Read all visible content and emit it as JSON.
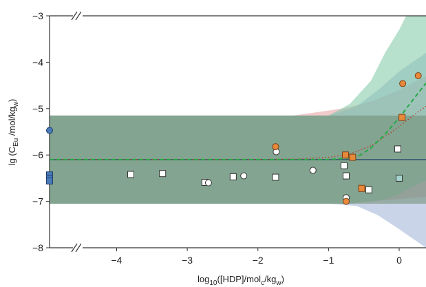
{
  "chart_data": {
    "type": "scatter",
    "xlabel_parts": {
      "a": "log",
      "a_sub": "10",
      "b": "([HDP]/mol",
      "b_sub": "c",
      "c": "/kg",
      "c_sub": "w",
      "d": ")"
    },
    "ylabel_parts": {
      "a": "lg (C",
      "a_sub": "Eu",
      "b": " /mol/kg",
      "b_sub": "w",
      "c": ")"
    },
    "xlim": [
      -4.95,
      0.38
    ],
    "ylim": [
      -8,
      -3
    ],
    "x_ticks": [
      -4,
      -3,
      -2,
      -1,
      0
    ],
    "x_tick_labels": [
      "−4",
      "−3",
      "−2",
      "−1",
      "0"
    ],
    "y_ticks": [
      -3,
      -4,
      -5,
      -6,
      -7,
      -8
    ],
    "y_tick_labels": [
      "−3",
      "−4",
      "−5",
      "−6",
      "−7",
      "−8"
    ],
    "axis_break": "//",
    "colors": {
      "orange": "#e8883a",
      "blue": "#4a7ab8",
      "green_dashed": "#27a844",
      "red_dotted": "#b04a3a",
      "solid_line": "#3f5f72",
      "band_green": "#7ec8a4",
      "band_red": "#e8a7a7",
      "band_blue": "#9fb1d6",
      "band_gray": "#6d8a6f"
    },
    "bands": {
      "constant_lower": -7.05,
      "constant_upper": -5.15,
      "green_model": [
        [
          -4.95,
          -7.05,
          -5.15
        ],
        [
          -1.5,
          -7.05,
          -5.15
        ],
        [
          -1.0,
          -7.05,
          -5.15
        ],
        [
          -0.7,
          -7.05,
          -4.9
        ],
        [
          -0.4,
          -7.0,
          -4.4
        ],
        [
          -0.2,
          -6.95,
          -3.8
        ],
        [
          0.0,
          -6.85,
          -3.3
        ],
        [
          0.1,
          -6.75,
          -3.0
        ],
        [
          0.38,
          -6.55,
          -3.0
        ]
      ],
      "red_model": [
        [
          -4.95,
          -7.05,
          -5.15
        ],
        [
          -1.5,
          -7.05,
          -5.15
        ],
        [
          -0.8,
          -7.05,
          -5.0
        ],
        [
          -0.4,
          -7.0,
          -4.85
        ],
        [
          0.0,
          -6.95,
          -4.6
        ],
        [
          0.38,
          -6.9,
          -4.3
        ]
      ],
      "blue_model": [
        [
          -4.95,
          -7.05,
          -5.15
        ],
        [
          -1.5,
          -7.05,
          -5.15
        ],
        [
          -1.0,
          -7.05,
          -5.15
        ],
        [
          -0.6,
          -7.1,
          -4.95
        ],
        [
          -0.3,
          -7.3,
          -4.6
        ],
        [
          0.0,
          -7.6,
          -4.2
        ],
        [
          0.38,
          -8.0,
          -3.8
        ]
      ]
    },
    "lines": {
      "solid": [
        [
          -4.95,
          -6.1
        ],
        [
          0.38,
          -6.1
        ]
      ],
      "green_dashed": [
        [
          -4.95,
          -6.1
        ],
        [
          -1.5,
          -6.1
        ],
        [
          -1.0,
          -6.1
        ],
        [
          -0.6,
          -6.05
        ],
        [
          -0.4,
          -5.85
        ],
        [
          -0.2,
          -5.55
        ],
        [
          0.0,
          -5.2
        ],
        [
          0.2,
          -4.8
        ],
        [
          0.38,
          -4.45
        ]
      ],
      "red_dotted": [
        [
          -4.95,
          -6.1
        ],
        [
          -2.0,
          -6.1
        ],
        [
          -1.5,
          -6.09
        ],
        [
          -1.0,
          -6.05
        ],
        [
          -0.7,
          -5.98
        ],
        [
          -0.4,
          -5.8
        ],
        [
          -0.1,
          -5.5
        ],
        [
          0.2,
          -5.15
        ],
        [
          0.38,
          -4.95
        ]
      ]
    },
    "series": [
      {
        "marker": "square",
        "fill": "none",
        "values": [
          [
            -3.8,
            -6.42
          ],
          [
            -3.35,
            -6.4
          ],
          [
            -2.75,
            -6.59
          ],
          [
            -2.35,
            -6.47
          ],
          [
            -1.75,
            -6.48
          ],
          [
            -0.75,
            -6.45
          ],
          [
            -0.78,
            -6.23
          ],
          [
            -0.02,
            -5.87
          ],
          [
            -0.43,
            -6.75
          ]
        ]
      },
      {
        "marker": "circle",
        "fill": "none",
        "values": [
          [
            -2.7,
            -6.6
          ],
          [
            -2.2,
            -6.45
          ],
          [
            -1.74,
            -5.93
          ],
          [
            -1.22,
            -6.33
          ],
          [
            -0.75,
            -6.92
          ]
        ]
      },
      {
        "marker": "circle",
        "fill": "orange",
        "values": [
          [
            -1.75,
            -5.82
          ],
          [
            -0.75,
            -7.0
          ],
          [
            0.05,
            -4.46
          ],
          [
            0.27,
            -4.29
          ]
        ]
      },
      {
        "marker": "square",
        "fill": "orange",
        "values": [
          [
            -0.76,
            -6.0
          ],
          [
            -0.66,
            -6.05
          ],
          [
            -0.53,
            -6.72
          ],
          [
            0.04,
            -5.19
          ]
        ]
      },
      {
        "marker": "square",
        "fill": "teal",
        "values": [
          [
            0.0,
            -6.5
          ]
        ]
      },
      {
        "marker": "circle",
        "fill": "blue",
        "values": [
          [
            -4.95,
            -5.47
          ]
        ]
      },
      {
        "marker": "square",
        "fill": "blue",
        "values": [
          [
            -4.95,
            -6.43
          ],
          [
            -4.95,
            -6.5
          ],
          [
            -4.95,
            -6.56
          ]
        ]
      }
    ]
  }
}
